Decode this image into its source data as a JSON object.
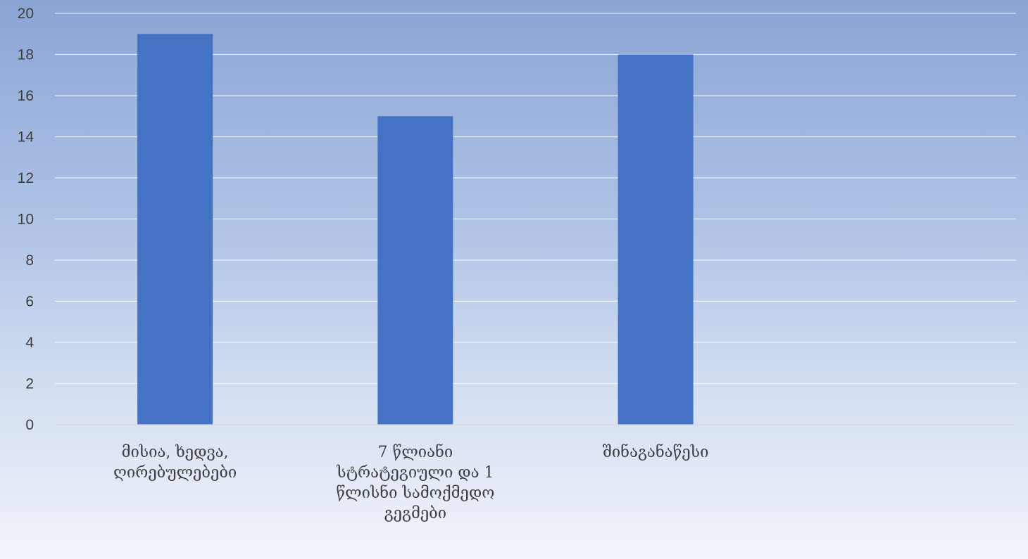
{
  "chart_data": {
    "type": "bar",
    "title": "",
    "xlabel": "",
    "ylabel": "",
    "categories": [
      [
        "მისია, ხედვა,",
        "ღირებულებები"
      ],
      [
        "7 წლიანი",
        "სტრატეგიული და 1",
        "წლისნი სამოქმედო",
        "გეგმები"
      ],
      [
        "შინაგანაწესი"
      ],
      [
        ""
      ]
    ],
    "values": [
      19,
      15,
      18,
      null
    ],
    "ylim": [
      0,
      20
    ],
    "yticks": [
      0,
      2,
      4,
      6,
      8,
      10,
      12,
      14,
      16,
      18,
      20
    ],
    "grid": true,
    "legend": "none",
    "bar_color": "#4472c4"
  }
}
